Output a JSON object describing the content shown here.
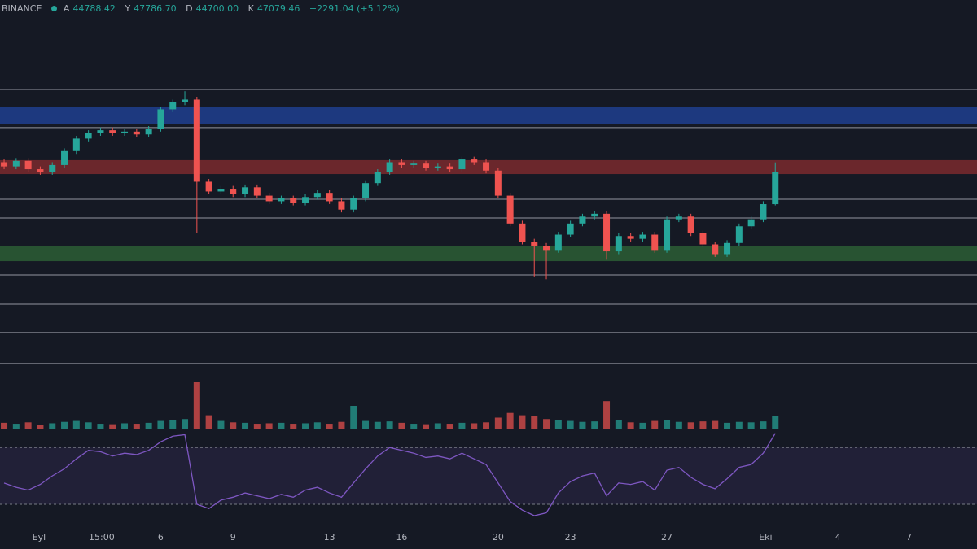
{
  "header": {
    "exchange": "BINANCE",
    "ohlc": [
      {
        "label": "A",
        "value": "44788.42"
      },
      {
        "label": "Y",
        "value": "47786.70"
      },
      {
        "label": "D",
        "value": "44700.00"
      },
      {
        "label": "K",
        "value": "47079.46"
      }
    ],
    "change": "+2291.04 (+5.12%)"
  },
  "chart_data": {
    "type": "candlestick",
    "up_color": "#26a69a",
    "down_color": "#ef5350",
    "level_color": "#b2b5be",
    "rsi_color": "#7e57c2",
    "xlim": [
      -0.34,
      80.74
    ],
    "xticks": [
      {
        "value": 2.9,
        "label": "Eyl"
      },
      {
        "value": 8.1,
        "label": "15:00"
      },
      {
        "value": 13,
        "label": "6"
      },
      {
        "value": 19,
        "label": "9"
      },
      {
        "value": 27,
        "label": "13"
      },
      {
        "value": 33,
        "label": "16"
      },
      {
        "value": 41,
        "label": "20"
      },
      {
        "value": 47,
        "label": "23"
      },
      {
        "value": 55,
        "label": "27"
      },
      {
        "value": 63.2,
        "label": "Eki"
      },
      {
        "value": 69.2,
        "label": "4"
      },
      {
        "value": 75.1,
        "label": "7"
      }
    ],
    "ylim": [
      32000,
      57700
    ],
    "levels": [
      53028,
      50290,
      45144,
      43800,
      39710,
      37610,
      35570,
      33350
    ],
    "zones": [
      {
        "range": [
          51800,
          50520
        ],
        "color": "#1e3f8f"
      },
      {
        "range": [
          47950,
          46950
        ],
        "color": "#7a2a2e"
      },
      {
        "range": [
          41760,
          40700
        ],
        "color": "#2b5e35"
      }
    ],
    "ohlc": [
      [
        47800,
        48000,
        47300,
        47500
      ],
      [
        47500,
        48100,
        47300,
        47900
      ],
      [
        47900,
        48100,
        47100,
        47300
      ],
      [
        47300,
        47500,
        46900,
        47100
      ],
      [
        47100,
        47800,
        46900,
        47600
      ],
      [
        47600,
        48800,
        47400,
        48600
      ],
      [
        48600,
        49700,
        48400,
        49500
      ],
      [
        49500,
        50100,
        49300,
        49900
      ],
      [
        49900,
        50300,
        49700,
        50100
      ],
      [
        50100,
        50300,
        49700,
        49900
      ],
      [
        49900,
        50200,
        49700,
        50000
      ],
      [
        50000,
        50200,
        49600,
        49800
      ],
      [
        49800,
        50400,
        49600,
        50200
      ],
      [
        50200,
        51800,
        50000,
        51600
      ],
      [
        51600,
        52300,
        51400,
        52100
      ],
      [
        52100,
        52900,
        51900,
        52300
      ],
      [
        52300,
        52500,
        42700,
        46400
      ],
      [
        46400,
        46600,
        45500,
        45700
      ],
      [
        45700,
        46100,
        45500,
        45900
      ],
      [
        45900,
        46100,
        45300,
        45500
      ],
      [
        45500,
        46200,
        45300,
        46000
      ],
      [
        46000,
        46200,
        45200,
        45400
      ],
      [
        45400,
        45600,
        44800,
        45000
      ],
      [
        45000,
        45400,
        44800,
        45200
      ],
      [
        45200,
        45400,
        44700,
        44900
      ],
      [
        44900,
        45500,
        44700,
        45300
      ],
      [
        45300,
        45800,
        45100,
        45600
      ],
      [
        45600,
        45800,
        44800,
        45000
      ],
      [
        45000,
        45200,
        44200,
        44400
      ],
      [
        44400,
        45400,
        44200,
        45200
      ],
      [
        45200,
        46500,
        45000,
        46300
      ],
      [
        46300,
        47300,
        46100,
        47100
      ],
      [
        47100,
        48000,
        46900,
        47800
      ],
      [
        47800,
        48000,
        47400,
        47600
      ],
      [
        47600,
        47900,
        47400,
        47700
      ],
      [
        47700,
        47900,
        47200,
        47400
      ],
      [
        47400,
        47700,
        47200,
        47500
      ],
      [
        47500,
        47700,
        47100,
        47300
      ],
      [
        47300,
        48200,
        47100,
        48000
      ],
      [
        48000,
        48200,
        47600,
        47800
      ],
      [
        47800,
        48000,
        47000,
        47200
      ],
      [
        47200,
        47400,
        45200,
        45400
      ],
      [
        45400,
        45600,
        43200,
        43400
      ],
      [
        43400,
        43600,
        41900,
        42100
      ],
      [
        42100,
        42300,
        39600,
        41800
      ],
      [
        41800,
        42000,
        39400,
        41500
      ],
      [
        41500,
        42800,
        41300,
        42600
      ],
      [
        42600,
        43600,
        42400,
        43400
      ],
      [
        43400,
        44100,
        43200,
        43900
      ],
      [
        43900,
        44300,
        43700,
        44100
      ],
      [
        44100,
        44300,
        40800,
        41400
      ],
      [
        41400,
        42700,
        41200,
        42500
      ],
      [
        42500,
        42700,
        42100,
        42300
      ],
      [
        42300,
        42800,
        42100,
        42600
      ],
      [
        42600,
        42800,
        41300,
        41500
      ],
      [
        41500,
        43900,
        41300,
        43700
      ],
      [
        43700,
        44100,
        43500,
        43900
      ],
      [
        43900,
        44100,
        42500,
        42700
      ],
      [
        42700,
        42900,
        41700,
        41900
      ],
      [
        41900,
        42100,
        41000,
        41200
      ],
      [
        41200,
        42200,
        41000,
        42000
      ],
      [
        42000,
        43400,
        41800,
        43200
      ],
      [
        43200,
        43900,
        43000,
        43700
      ],
      [
        43700,
        45000,
        43500,
        44790
      ],
      [
        44788.42,
        47786.7,
        44700,
        47079.46
      ]
    ],
    "volume": [
      14,
      12,
      15,
      10,
      13,
      16,
      18,
      15,
      12,
      11,
      13,
      12,
      14,
      18,
      20,
      22,
      100,
      30,
      18,
      15,
      14,
      12,
      13,
      14,
      12,
      13,
      15,
      12,
      16,
      50,
      18,
      16,
      17,
      14,
      12,
      11,
      13,
      12,
      14,
      13,
      15,
      25,
      35,
      30,
      28,
      22,
      20,
      18,
      16,
      17,
      60,
      20,
      15,
      14,
      18,
      20,
      16,
      15,
      17,
      18,
      14,
      16,
      15,
      17,
      28
    ],
    "rsi_ylim": [
      18,
      81
    ],
    "rsi_bands": [
      30,
      70
    ],
    "rsi": [
      45,
      42,
      40,
      44,
      50,
      55,
      62,
      68,
      67,
      64,
      66,
      65,
      68,
      74,
      78,
      79,
      30,
      27,
      33,
      35,
      38,
      36,
      34,
      37,
      35,
      40,
      42,
      38,
      35,
      45,
      55,
      64,
      70,
      68,
      66,
      63,
      64,
      62,
      66,
      62,
      58,
      45,
      32,
      26,
      22,
      24,
      38,
      46,
      50,
      52,
      36,
      45,
      44,
      46,
      40,
      54,
      56,
      49,
      44,
      41,
      48,
      56,
      58,
      66,
      80
    ]
  }
}
